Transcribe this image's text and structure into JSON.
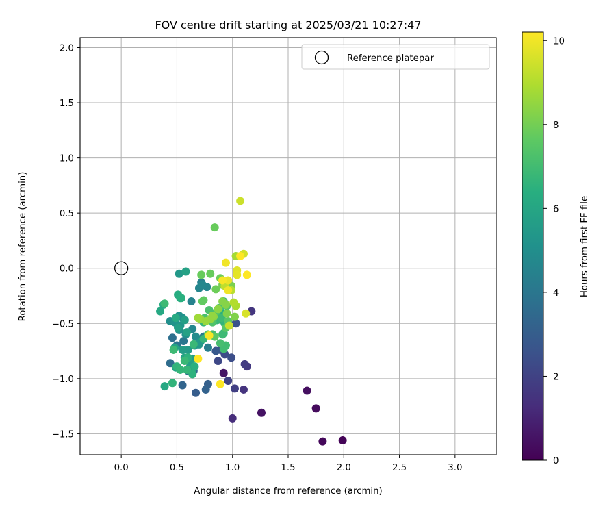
{
  "chart_data": {
    "type": "scatter",
    "title": "FOV centre drift starting at 2025/03/21 10:27:47",
    "xlabel": "Angular distance from reference (arcmin)",
    "ylabel": "Rotation from reference (arcmin)",
    "xlim": [
      -0.37,
      3.37
    ],
    "ylim": [
      -1.69,
      2.09
    ],
    "xticks": [
      0.0,
      0.5,
      1.0,
      1.5,
      2.0,
      2.5,
      3.0
    ],
    "xtick_labels": [
      "0.0",
      "0.5",
      "1.0",
      "1.5",
      "2.0",
      "2.5",
      "3.0"
    ],
    "yticks": [
      -1.5,
      -1.0,
      -0.5,
      0.0,
      0.5,
      1.0,
      1.5,
      2.0
    ],
    "ytick_labels": [
      "−1.5",
      "−1.0",
      "−0.5",
      "0.0",
      "0.5",
      "1.0",
      "1.5",
      "2.0"
    ],
    "grid": true,
    "legend": {
      "label": "Reference platepar",
      "placement": "top-right",
      "marker": "open-circle"
    },
    "reference_point": {
      "x": 0.0,
      "y": 0.0
    },
    "colorbar": {
      "label": "Hours from first FF file",
      "min": 0,
      "max": 10.2,
      "ticks": [
        0,
        2,
        4,
        6,
        8,
        10
      ],
      "tick_labels": [
        "0",
        "2",
        "4",
        "6",
        "8",
        "10"
      ],
      "colormap": "viridis"
    },
    "series": [
      {
        "name": "FOV centre drift",
        "x": [
          1.99,
          1.81,
          1.75,
          1.67,
          1.26,
          0.92,
          1.0,
          1.1,
          1.17,
          1.13,
          1.11,
          1.02,
          0.96,
          0.87,
          0.93,
          0.99,
          0.89,
          1.03,
          0.85,
          0.67,
          0.78,
          0.76,
          0.55,
          0.65,
          0.6,
          0.44,
          0.46,
          0.5,
          0.56,
          0.62,
          0.74,
          0.78,
          0.72,
          0.63,
          0.7,
          0.77,
          0.73,
          0.64,
          0.53,
          0.67,
          0.58,
          0.44,
          0.52,
          0.55,
          0.48,
          0.52,
          0.51,
          0.53,
          0.66,
          0.7,
          0.71,
          0.6,
          0.64,
          0.55,
          0.51,
          0.57,
          0.59,
          0.62,
          0.48,
          0.57,
          0.64,
          0.49,
          0.39,
          0.35,
          0.38,
          0.49,
          0.51,
          0.53,
          0.54,
          0.66,
          0.64,
          0.6,
          0.46,
          0.5,
          0.53,
          0.59,
          0.65,
          0.57,
          0.47,
          0.39,
          0.52,
          0.58,
          0.88,
          0.91,
          0.92,
          0.89,
          0.92,
          0.93,
          0.92,
          0.74,
          0.74,
          0.8,
          0.86,
          0.9,
          0.91,
          0.92,
          0.94,
          0.89,
          0.82,
          0.75,
          0.79,
          0.82,
          0.86,
          0.88,
          0.95,
          0.96,
          0.94,
          0.84,
          0.78,
          0.73,
          0.74,
          0.72,
          0.8,
          0.85,
          0.89,
          0.91,
          0.93,
          0.97,
          0.99,
          1.02,
          0.95,
          0.94,
          0.91,
          0.87,
          0.83,
          0.8,
          0.82,
          0.76,
          0.71,
          0.69,
          0.84,
          1.03,
          1.03,
          1.01,
          0.99,
          0.93,
          0.97,
          1.07,
          1.1,
          1.12,
          1.04,
          1.04,
          0.96,
          0.94,
          0.96,
          0.91,
          0.79,
          0.69,
          0.89,
          1.13,
          1.07
        ],
        "y": [
          -1.56,
          -1.57,
          -1.27,
          -1.11,
          -1.31,
          -0.95,
          -1.36,
          -1.1,
          -0.39,
          -0.89,
          -0.87,
          -1.09,
          -1.02,
          -0.84,
          -0.78,
          -0.81,
          -0.74,
          -0.5,
          -0.75,
          -1.13,
          -1.05,
          -1.1,
          -1.06,
          -0.93,
          -0.93,
          -0.86,
          -0.63,
          -0.7,
          -0.66,
          -0.89,
          -0.62,
          -0.72,
          -0.13,
          -0.3,
          -0.18,
          -0.17,
          -0.15,
          -0.55,
          -0.52,
          -0.62,
          -0.6,
          -0.48,
          -0.43,
          -0.45,
          -0.49,
          -0.56,
          -0.53,
          -0.52,
          -0.7,
          -0.69,
          -0.67,
          -0.74,
          -0.82,
          -0.74,
          -0.54,
          -0.47,
          -0.58,
          -0.86,
          -0.72,
          -0.81,
          -0.91,
          -0.9,
          -1.07,
          -0.39,
          -0.33,
          -0.45,
          -0.24,
          -0.27,
          -0.27,
          -0.89,
          -0.96,
          -0.81,
          -1.04,
          -0.89,
          -0.92,
          -0.92,
          -0.69,
          -0.84,
          -0.74,
          -0.32,
          -0.05,
          -0.03,
          -0.42,
          -0.47,
          -0.33,
          -0.39,
          -0.3,
          -0.5,
          -0.59,
          -0.64,
          -0.49,
          -0.46,
          -0.47,
          -0.45,
          -0.6,
          -0.73,
          -0.7,
          -0.68,
          -0.6,
          -0.45,
          -0.38,
          -0.49,
          -0.39,
          -0.36,
          -0.34,
          -0.48,
          -0.54,
          -0.62,
          -0.6,
          -0.3,
          -0.29,
          -0.06,
          -0.05,
          -0.19,
          -0.09,
          -0.15,
          -0.13,
          -0.18,
          -0.16,
          -0.44,
          -0.41,
          -0.33,
          -0.3,
          -0.37,
          -0.44,
          -0.46,
          -0.43,
          -0.48,
          -0.46,
          -0.45,
          0.37,
          0.11,
          -0.34,
          -0.31,
          -0.2,
          -0.16,
          -0.52,
          0.61,
          0.13,
          -0.41,
          -0.02,
          -0.06,
          -0.11,
          0.05,
          -0.2,
          -0.11,
          -0.61,
          -0.82,
          -1.05,
          -0.06,
          0.11
        ],
        "c": [
          0.1,
          0.2,
          0.3,
          0.4,
          0.5,
          0.6,
          1.3,
          1.5,
          1.6,
          1.7,
          1.8,
          1.9,
          2.0,
          2.2,
          2.3,
          2.4,
          2.5,
          2.6,
          2.8,
          3.0,
          3.1,
          3.2,
          3.3,
          3.4,
          3.5,
          3.6,
          3.7,
          3.9,
          4.0,
          4.1,
          4.2,
          4.3,
          4.4,
          4.5,
          4.6,
          4.6,
          4.7,
          4.7,
          4.8,
          4.9,
          5.0,
          5.0,
          5.1,
          5.1,
          5.2,
          5.2,
          5.3,
          5.3,
          5.4,
          5.4,
          5.5,
          5.5,
          5.6,
          5.6,
          5.7,
          5.7,
          5.8,
          5.8,
          5.9,
          5.9,
          6.0,
          6.0,
          6.1,
          6.1,
          6.2,
          6.2,
          6.3,
          6.3,
          6.4,
          6.4,
          6.5,
          6.5,
          6.6,
          6.6,
          6.7,
          6.7,
          6.8,
          6.8,
          6.9,
          6.9,
          5.4,
          5.8,
          6.0,
          6.2,
          6.4,
          6.4,
          6.5,
          6.6,
          6.6,
          6.7,
          6.7,
          6.8,
          6.8,
          6.9,
          6.9,
          7.0,
          7.0,
          7.1,
          7.1,
          7.2,
          7.2,
          7.3,
          7.3,
          7.4,
          7.4,
          7.5,
          7.5,
          7.6,
          7.6,
          7.7,
          7.7,
          7.8,
          7.8,
          7.9,
          7.9,
          8.0,
          8.0,
          8.1,
          8.1,
          8.2,
          8.2,
          8.3,
          8.3,
          8.4,
          8.4,
          8.5,
          8.5,
          8.6,
          8.6,
          8.7,
          7.8,
          8.8,
          8.9,
          9.0,
          9.1,
          9.2,
          9.3,
          9.4,
          9.5,
          9.6,
          9.7,
          9.8,
          9.9,
          10.0,
          10.0,
          10.1,
          10.1,
          10.2,
          10.2,
          10.2,
          10.2
        ]
      }
    ]
  }
}
